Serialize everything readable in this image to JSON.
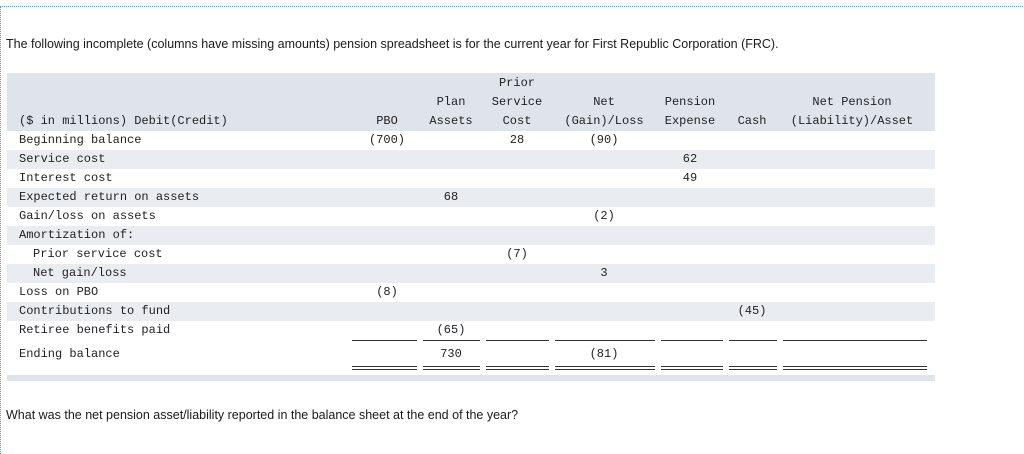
{
  "intro": "The following incomplete (columns have missing amounts) pension spreadsheet is for the current year for First Republic Corporation (FRC).",
  "question": "What was the net pension asset/liability reported in the balance sheet at the end of the year?",
  "header": {
    "label": "($ in millions) Debit(Credit)",
    "pbo": [
      "PBO"
    ],
    "plan_assets": [
      "Plan",
      "Assets"
    ],
    "prior_service_cost": [
      "Prior",
      "Service",
      "Cost"
    ],
    "net_gain_loss": [
      "Net",
      "(Gain)/Loss"
    ],
    "pension_expense": [
      "Pension",
      "Expense"
    ],
    "cash": [
      "Cash"
    ],
    "net_pension": [
      "Net Pension",
      "(Liability)/Asset"
    ]
  },
  "rows": [
    {
      "label": "Beginning balance",
      "pbo": "(700)",
      "plan_assets": "",
      "prior_service_cost": "28",
      "net_gain_loss": "(90)",
      "pension_expense": "",
      "cash": "",
      "net_pension": ""
    },
    {
      "label": "Service cost",
      "pbo": "",
      "plan_assets": "",
      "prior_service_cost": "",
      "net_gain_loss": "",
      "pension_expense": "62",
      "cash": "",
      "net_pension": ""
    },
    {
      "label": "Interest cost",
      "pbo": "",
      "plan_assets": "",
      "prior_service_cost": "",
      "net_gain_loss": "",
      "pension_expense": "49",
      "cash": "",
      "net_pension": ""
    },
    {
      "label": "Expected return on assets",
      "pbo": "",
      "plan_assets": "68",
      "prior_service_cost": "",
      "net_gain_loss": "",
      "pension_expense": "",
      "cash": "",
      "net_pension": ""
    },
    {
      "label": "Gain/loss on assets",
      "pbo": "",
      "plan_assets": "",
      "prior_service_cost": "",
      "net_gain_loss": "(2)",
      "pension_expense": "",
      "cash": "",
      "net_pension": ""
    },
    {
      "label": "Amortization of:",
      "pbo": "",
      "plan_assets": "",
      "prior_service_cost": "",
      "net_gain_loss": "",
      "pension_expense": "",
      "cash": "",
      "net_pension": ""
    },
    {
      "label": "Prior service cost",
      "pbo": "",
      "plan_assets": "",
      "prior_service_cost": "(7)",
      "net_gain_loss": "",
      "pension_expense": "",
      "cash": "",
      "net_pension": ""
    },
    {
      "label": "Net gain/loss",
      "pbo": "",
      "plan_assets": "",
      "prior_service_cost": "",
      "net_gain_loss": "3",
      "pension_expense": "",
      "cash": "",
      "net_pension": ""
    },
    {
      "label": "Loss on PBO",
      "pbo": "(8)",
      "plan_assets": "",
      "prior_service_cost": "",
      "net_gain_loss": "",
      "pension_expense": "",
      "cash": "",
      "net_pension": ""
    },
    {
      "label": "Contributions to fund",
      "pbo": "",
      "plan_assets": "",
      "prior_service_cost": "",
      "net_gain_loss": "",
      "pension_expense": "",
      "cash": "(45)",
      "net_pension": ""
    },
    {
      "label": "Retiree benefits paid",
      "pbo": "",
      "plan_assets": "(65)",
      "prior_service_cost": "",
      "net_gain_loss": "",
      "pension_expense": "",
      "cash": "",
      "net_pension": ""
    },
    {
      "label": "Ending balance",
      "pbo": "",
      "plan_assets": "730",
      "prior_service_cost": "",
      "net_gain_loss": "(81)",
      "pension_expense": "",
      "cash": "",
      "net_pension": ""
    }
  ]
}
